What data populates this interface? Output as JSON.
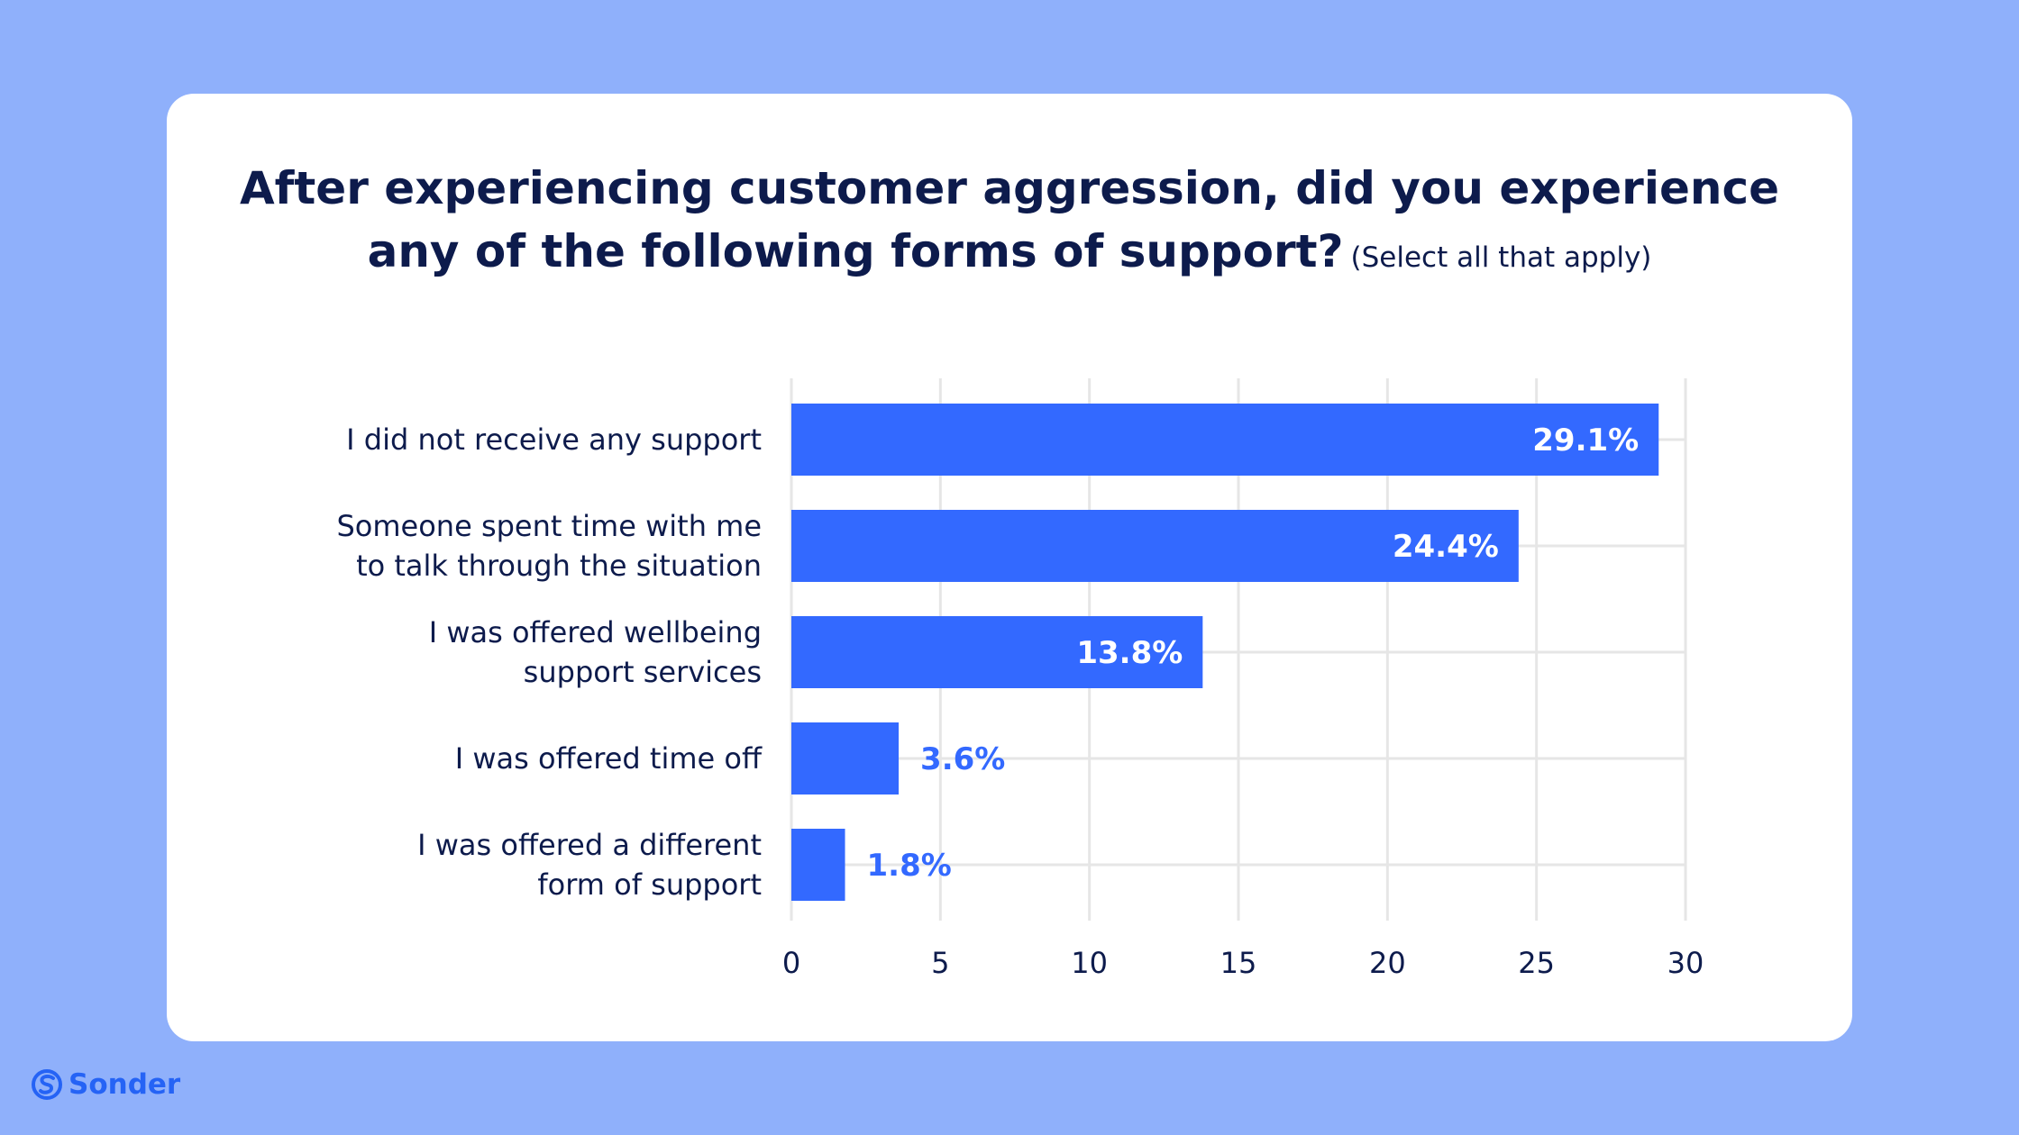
{
  "chart_data": {
    "type": "bar",
    "orientation": "horizontal",
    "title": "After experiencing customer aggression, did you experience any of the following forms of support?",
    "title_lines": [
      "After experiencing customer aggression, did you experience",
      "any of the following forms of support?"
    ],
    "subtitle": "(Select all that apply)",
    "categories": [
      [
        "I did not receive any support"
      ],
      [
        "Someone spent time with me",
        "to talk through the situation"
      ],
      [
        "I was offered wellbeing",
        "support services"
      ],
      [
        "I was offered time off"
      ],
      [
        "I was offered a different",
        "form of support"
      ]
    ],
    "values": [
      29.1,
      24.4,
      13.8,
      3.6,
      1.8
    ],
    "value_labels": [
      "29.1%",
      "24.4%",
      "13.8%",
      "3.6%",
      "1.8%"
    ],
    "xlim": [
      0,
      30
    ],
    "xticks": [
      0,
      5,
      10,
      15,
      20,
      25,
      30
    ],
    "xlabel": "",
    "ylabel": "",
    "grid": true,
    "legend": "none"
  },
  "colors": {
    "bar": "#3369ff",
    "label_inside": "#ffffff",
    "label_outside": "#3369ff",
    "grid": "#e6e6e6",
    "background": "#8fb0fb",
    "card": "#ffffff",
    "text": "#0d1b4c",
    "brand": "#2563f5"
  },
  "brand": {
    "name": "Sonder",
    "icon": "sonder-logo-icon"
  }
}
